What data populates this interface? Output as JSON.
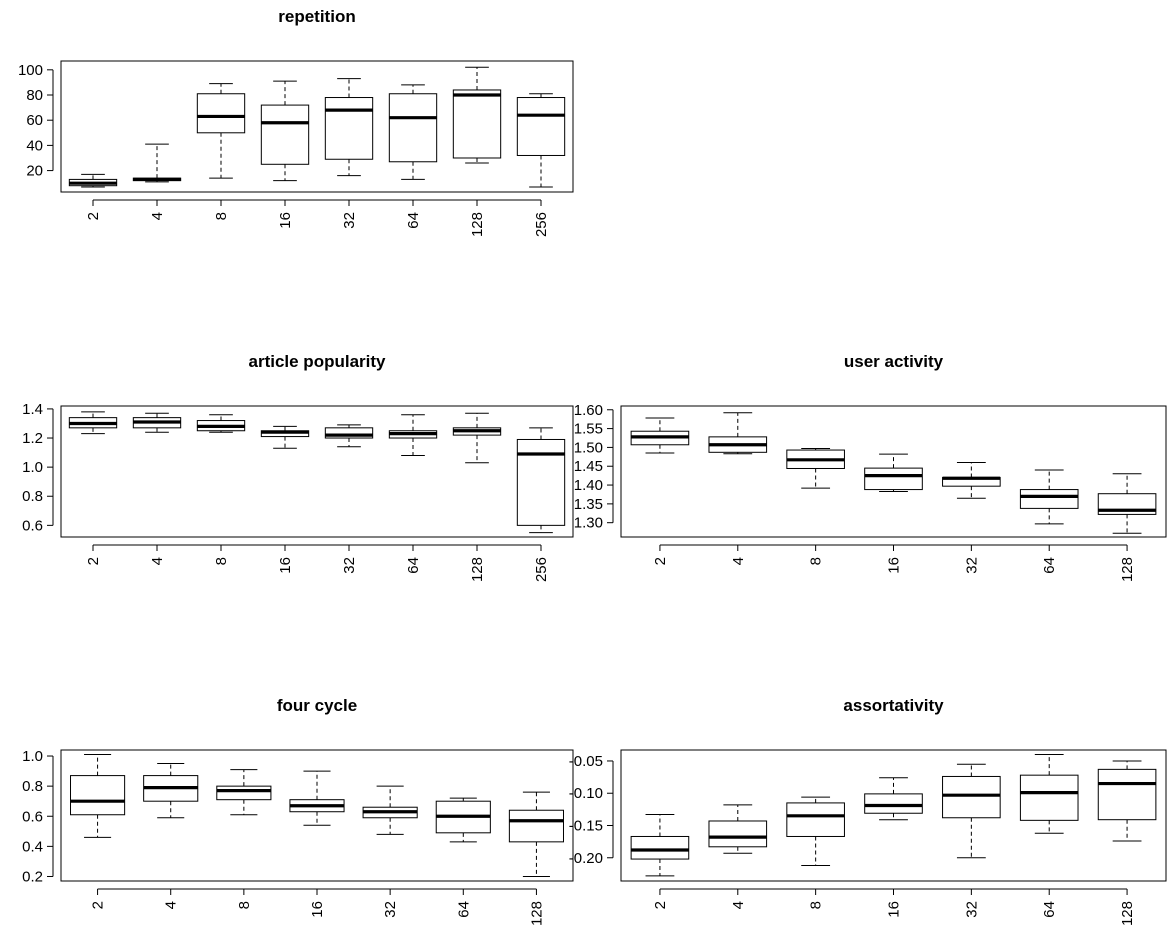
{
  "chart_data": [
    {
      "type": "box",
      "title": "repetition",
      "categories": [
        "2",
        "4",
        "8",
        "16",
        "32",
        "64",
        "128",
        "256"
      ],
      "yticks": [
        "20",
        "40",
        "60",
        "80",
        "100"
      ],
      "ytick_values": [
        20,
        40,
        60,
        80,
        100
      ],
      "ylim": [
        3,
        107
      ],
      "boxes": [
        {
          "min": 7,
          "q1": 8,
          "median": 10,
          "q3": 13,
          "max": 17
        },
        {
          "min": 11,
          "q1": 12,
          "median": 13,
          "q3": 14,
          "max": 41
        },
        {
          "min": 14,
          "q1": 50,
          "median": 63,
          "q3": 81,
          "max": 89
        },
        {
          "min": 12,
          "q1": 25,
          "median": 58,
          "q3": 72,
          "max": 91
        },
        {
          "min": 16,
          "q1": 29,
          "median": 68,
          "q3": 78,
          "max": 93
        },
        {
          "min": 13,
          "q1": 27,
          "median": 62,
          "q3": 81,
          "max": 88
        },
        {
          "min": 26,
          "q1": 30,
          "median": 80,
          "q3": 84,
          "max": 102
        },
        {
          "min": 7,
          "q1": 32,
          "median": 64,
          "q3": 78,
          "max": 81
        }
      ]
    },
    {
      "type": "box",
      "title": "article popularity",
      "categories": [
        "2",
        "4",
        "8",
        "16",
        "32",
        "64",
        "128",
        "256"
      ],
      "yticks": [
        "0.6",
        "0.8",
        "1.0",
        "1.2",
        "1.4"
      ],
      "ytick_values": [
        0.6,
        0.8,
        1.0,
        1.2,
        1.4
      ],
      "ylim": [
        0.52,
        1.42
      ],
      "boxes": [
        {
          "min": 1.23,
          "q1": 1.27,
          "median": 1.3,
          "q3": 1.34,
          "max": 1.38
        },
        {
          "min": 1.24,
          "q1": 1.27,
          "median": 1.31,
          "q3": 1.34,
          "max": 1.37
        },
        {
          "min": 1.24,
          "q1": 1.25,
          "median": 1.28,
          "q3": 1.32,
          "max": 1.36
        },
        {
          "min": 1.13,
          "q1": 1.21,
          "median": 1.24,
          "q3": 1.25,
          "max": 1.28
        },
        {
          "min": 1.14,
          "q1": 1.2,
          "median": 1.22,
          "q3": 1.27,
          "max": 1.29
        },
        {
          "min": 1.08,
          "q1": 1.2,
          "median": 1.23,
          "q3": 1.25,
          "max": 1.36
        },
        {
          "min": 1.03,
          "q1": 1.22,
          "median": 1.25,
          "q3": 1.27,
          "max": 1.37
        },
        {
          "min": 0.55,
          "q1": 0.6,
          "median": 1.09,
          "q3": 1.19,
          "max": 1.27
        }
      ]
    },
    {
      "type": "box",
      "title": "user activity",
      "categories": [
        "2",
        "4",
        "8",
        "16",
        "32",
        "64",
        "128"
      ],
      "yticks": [
        "1.30",
        "1.35",
        "1.40",
        "1.45",
        "1.50",
        "1.55",
        "1.60"
      ],
      "ytick_values": [
        1.3,
        1.35,
        1.4,
        1.45,
        1.5,
        1.55,
        1.6
      ],
      "ylim": [
        1.262,
        1.61
      ],
      "boxes": [
        {
          "min": 1.485,
          "q1": 1.507,
          "median": 1.528,
          "q3": 1.543,
          "max": 1.578
        },
        {
          "min": 1.483,
          "q1": 1.487,
          "median": 1.507,
          "q3": 1.528,
          "max": 1.592
        },
        {
          "min": 1.392,
          "q1": 1.444,
          "median": 1.467,
          "q3": 1.493,
          "max": 1.497
        },
        {
          "min": 1.383,
          "q1": 1.388,
          "median": 1.425,
          "q3": 1.445,
          "max": 1.482
        },
        {
          "min": 1.365,
          "q1": 1.397,
          "median": 1.418,
          "q3": 1.42,
          "max": 1.46
        },
        {
          "min": 1.297,
          "q1": 1.338,
          "median": 1.37,
          "q3": 1.388,
          "max": 1.44
        },
        {
          "min": 1.272,
          "q1": 1.322,
          "median": 1.333,
          "q3": 1.377,
          "max": 1.43
        }
      ]
    },
    {
      "type": "box",
      "title": "four cycle",
      "categories": [
        "2",
        "4",
        "8",
        "16",
        "32",
        "64",
        "128"
      ],
      "yticks": [
        "0.2",
        "0.4",
        "0.6",
        "0.8",
        "1.0"
      ],
      "ytick_values": [
        0.2,
        0.4,
        0.6,
        0.8,
        1.0
      ],
      "ylim": [
        0.17,
        1.04
      ],
      "boxes": [
        {
          "min": 0.46,
          "q1": 0.61,
          "median": 0.7,
          "q3": 0.87,
          "max": 1.01
        },
        {
          "min": 0.59,
          "q1": 0.7,
          "median": 0.79,
          "q3": 0.87,
          "max": 0.95
        },
        {
          "min": 0.61,
          "q1": 0.71,
          "median": 0.77,
          "q3": 0.8,
          "max": 0.91
        },
        {
          "min": 0.54,
          "q1": 0.63,
          "median": 0.67,
          "q3": 0.71,
          "max": 0.9
        },
        {
          "min": 0.48,
          "q1": 0.59,
          "median": 0.63,
          "q3": 0.66,
          "max": 0.8
        },
        {
          "min": 0.43,
          "q1": 0.49,
          "median": 0.6,
          "q3": 0.7,
          "max": 0.72
        },
        {
          "min": 0.2,
          "q1": 0.43,
          "median": 0.57,
          "q3": 0.64,
          "max": 0.76
        }
      ]
    },
    {
      "type": "box",
      "title": "assortativity",
      "categories": [
        "2",
        "4",
        "8",
        "16",
        "32",
        "64",
        "128"
      ],
      "yticks": [
        "-0.20",
        "-0.15",
        "-0.10",
        "-0.05"
      ],
      "ytick_values": [
        -0.2,
        -0.15,
        -0.1,
        -0.05
      ],
      "ylim": [
        -0.236,
        -0.033
      ],
      "boxes": [
        {
          "min": -0.228,
          "q1": -0.202,
          "median": -0.188,
          "q3": -0.167,
          "max": -0.133
        },
        {
          "min": -0.193,
          "q1": -0.183,
          "median": -0.168,
          "q3": -0.143,
          "max": -0.118
        },
        {
          "min": -0.212,
          "q1": -0.167,
          "median": -0.135,
          "q3": -0.115,
          "max": -0.106
        },
        {
          "min": -0.141,
          "q1": -0.131,
          "median": -0.119,
          "q3": -0.101,
          "max": -0.076
        },
        {
          "min": -0.2,
          "q1": -0.138,
          "median": -0.103,
          "q3": -0.074,
          "max": -0.055
        },
        {
          "min": -0.162,
          "q1": -0.142,
          "median": -0.099,
          "q3": -0.072,
          "max": -0.04
        },
        {
          "min": -0.174,
          "q1": -0.141,
          "median": -0.085,
          "q3": -0.063,
          "max": -0.05
        }
      ]
    }
  ]
}
